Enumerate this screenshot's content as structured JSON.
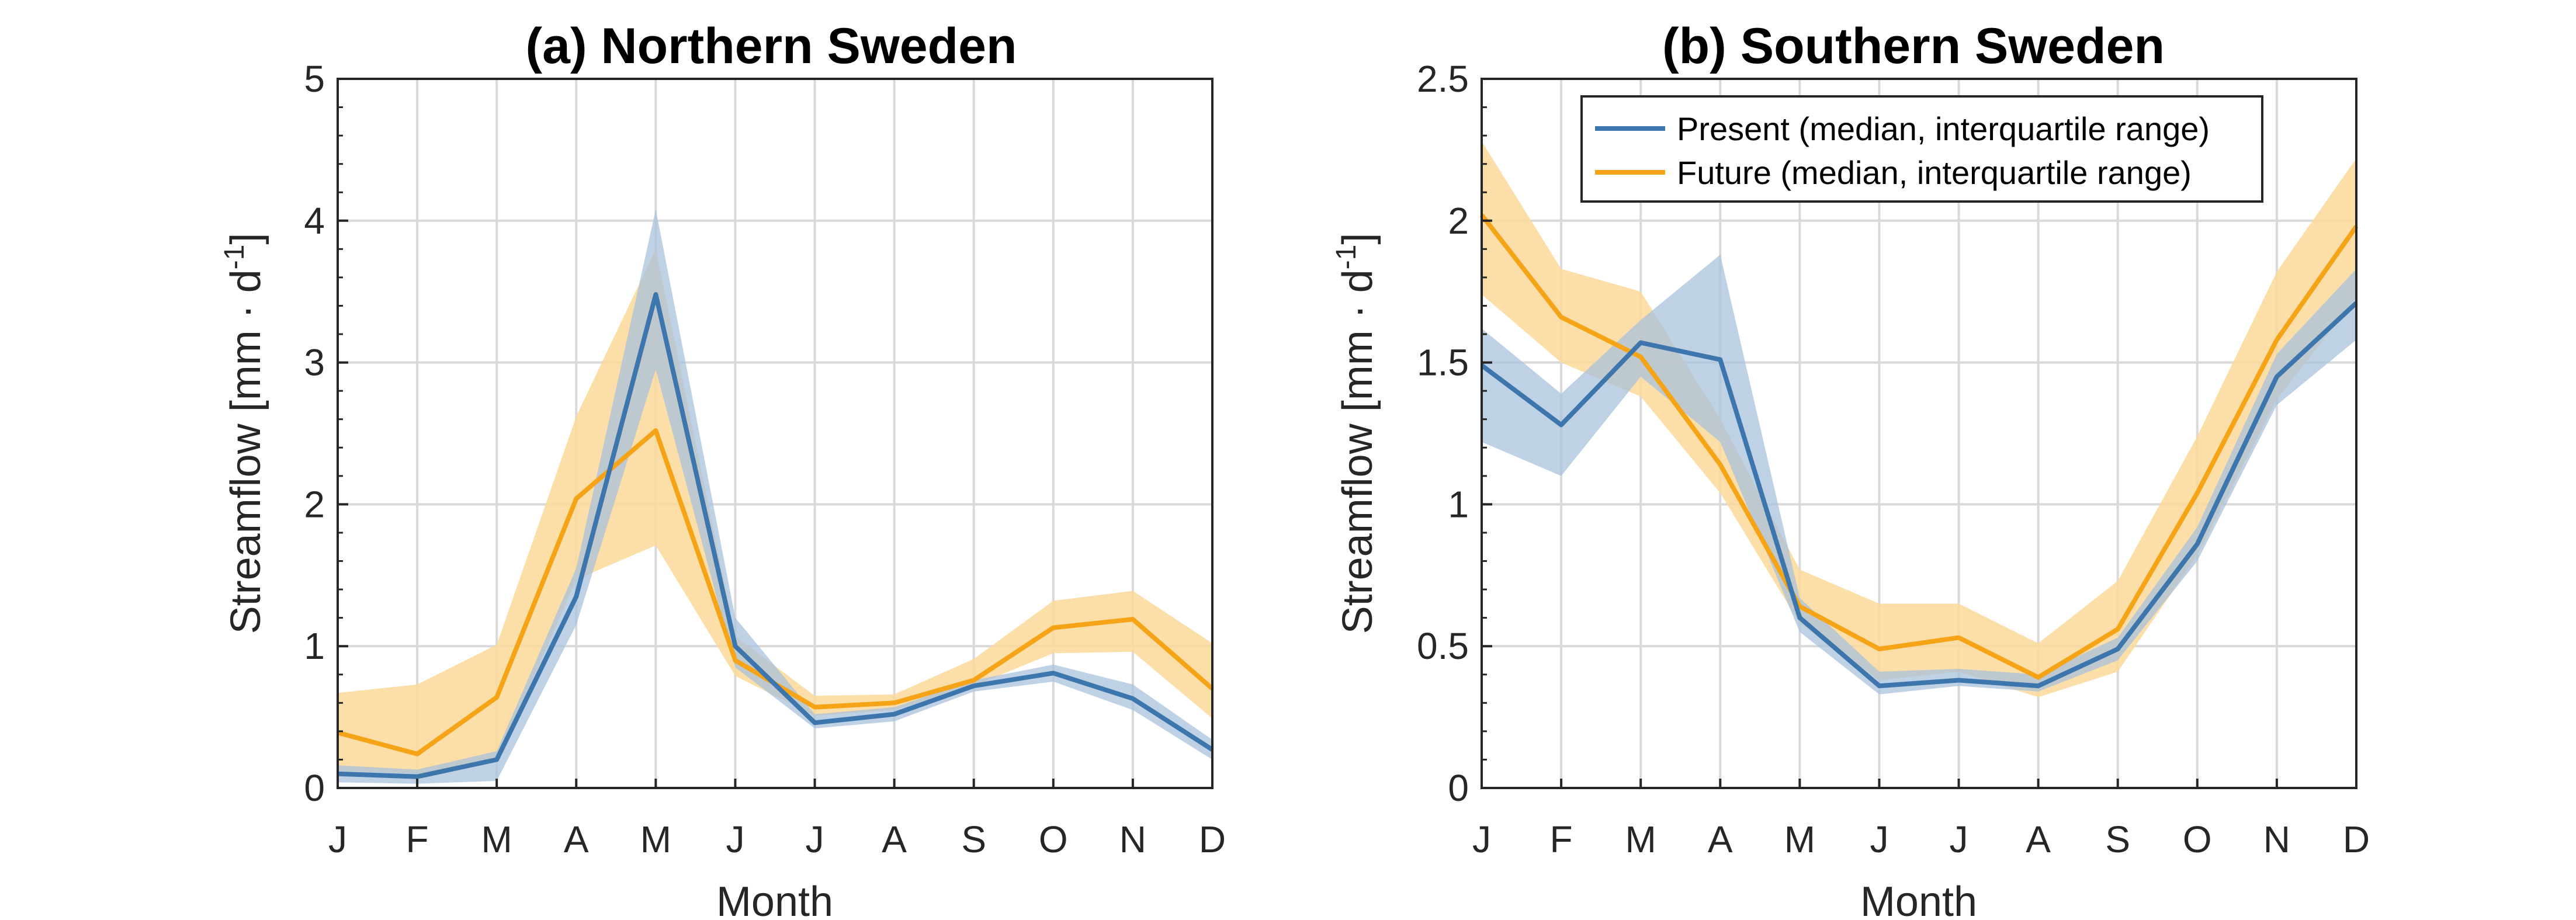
{
  "chart_data": [
    {
      "id": "a",
      "type": "line",
      "title": "(a) Northern Sweden",
      "xlabel": "Month",
      "ylabel": "Streamflow [mm · d",
      "ylabel_sup": "-1",
      "ylabel_end": "]",
      "categories": [
        "J",
        "F",
        "M",
        "A",
        "M",
        "J",
        "J",
        "A",
        "S",
        "O",
        "N",
        "D"
      ],
      "ylim": [
        0,
        5
      ],
      "yticks": [
        0,
        1,
        2,
        3,
        4,
        5
      ],
      "ytick_labels": [
        "0",
        "1",
        "2",
        "3",
        "4",
        "5"
      ],
      "grid": true,
      "series": [
        {
          "key": "present",
          "name": "Present (median, interquartile range)",
          "color": "#3d76ac",
          "band_color": "#a9c2dc",
          "values": [
            0.1,
            0.08,
            0.2,
            1.35,
            3.48,
            1.0,
            0.46,
            0.52,
            0.72,
            0.81,
            0.63,
            0.27
          ],
          "lower": [
            0.04,
            0.03,
            0.05,
            1.15,
            2.95,
            0.85,
            0.42,
            0.47,
            0.68,
            0.75,
            0.55,
            0.2
          ],
          "upper": [
            0.16,
            0.13,
            0.26,
            1.55,
            4.08,
            1.2,
            0.52,
            0.57,
            0.76,
            0.87,
            0.73,
            0.34
          ]
        },
        {
          "key": "future",
          "name": "Future (median, interquartile range)",
          "color": "#f5a418",
          "band_color": "#fcd999",
          "values": [
            0.39,
            0.24,
            0.64,
            2.04,
            2.52,
            0.9,
            0.57,
            0.6,
            0.76,
            1.13,
            1.19,
            0.7
          ],
          "lower": [
            0.12,
            0.1,
            0.19,
            1.47,
            1.71,
            0.79,
            0.51,
            0.55,
            0.72,
            0.95,
            0.96,
            0.49
          ],
          "upper": [
            0.67,
            0.73,
            1.01,
            2.62,
            3.8,
            1.07,
            0.65,
            0.66,
            0.91,
            1.32,
            1.39,
            1.02
          ]
        }
      ]
    },
    {
      "id": "b",
      "type": "line",
      "title": "(b) Southern Sweden",
      "xlabel": "Month",
      "ylabel": "Streamflow [mm · d",
      "ylabel_sup": "-1",
      "ylabel_end": "]",
      "categories": [
        "J",
        "F",
        "M",
        "A",
        "M",
        "J",
        "J",
        "A",
        "S",
        "O",
        "N",
        "D"
      ],
      "ylim": [
        0,
        2.5
      ],
      "yticks": [
        0,
        0.5,
        1,
        1.5,
        2,
        2.5
      ],
      "ytick_labels": [
        "0",
        "0.5",
        "1",
        "1.5",
        "2",
        "2.5"
      ],
      "grid": true,
      "legend": "top-right",
      "series": [
        {
          "key": "present",
          "name": "Present (median, interquartile range)",
          "color": "#3d76ac",
          "band_color": "#a9c2dc",
          "values": [
            1.49,
            1.28,
            1.57,
            1.51,
            0.6,
            0.36,
            0.38,
            0.36,
            0.49,
            0.86,
            1.45,
            1.71
          ],
          "lower": [
            1.22,
            1.1,
            1.45,
            1.22,
            0.55,
            0.33,
            0.36,
            0.34,
            0.45,
            0.8,
            1.35,
            1.58
          ],
          "upper": [
            1.62,
            1.39,
            1.65,
            1.88,
            0.67,
            0.41,
            0.42,
            0.4,
            0.53,
            0.92,
            1.53,
            1.83
          ]
        },
        {
          "key": "future",
          "name": "Future (median, interquartile range)",
          "color": "#f5a418",
          "band_color": "#fcd999",
          "values": [
            2.02,
            1.66,
            1.52,
            1.14,
            0.64,
            0.49,
            0.53,
            0.39,
            0.56,
            1.04,
            1.58,
            1.98
          ],
          "lower": [
            1.74,
            1.5,
            1.38,
            1.04,
            0.58,
            0.38,
            0.41,
            0.32,
            0.41,
            0.82,
            1.37,
            1.73
          ],
          "upper": [
            2.28,
            1.83,
            1.75,
            1.3,
            0.77,
            0.65,
            0.65,
            0.51,
            0.73,
            1.24,
            1.82,
            2.22
          ]
        }
      ]
    }
  ]
}
